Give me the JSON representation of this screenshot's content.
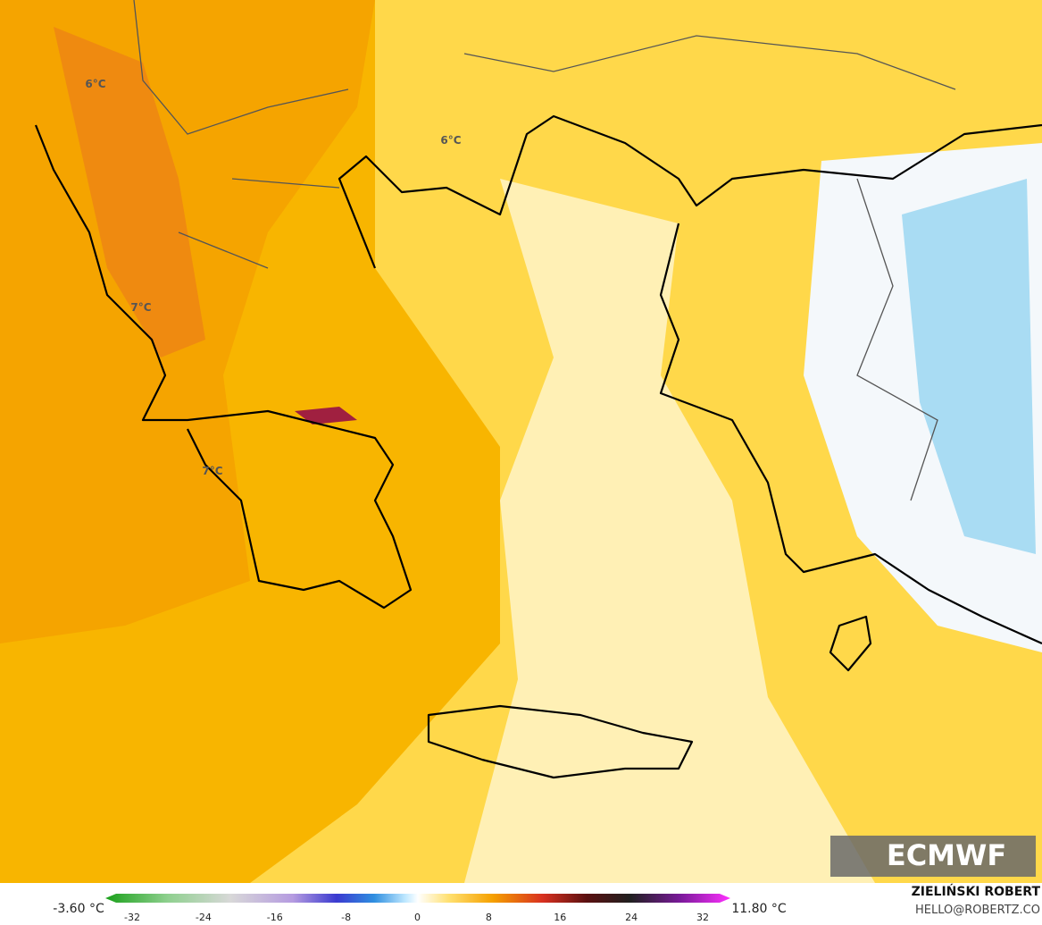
{
  "map": {
    "labels": [
      "6°C",
      "6°C",
      "7°C",
      "7°C"
    ],
    "logo": "ECMWF"
  },
  "legend": {
    "min_label": "-3.60 °C",
    "max_label": "11.80 °C",
    "ticks": [
      -32,
      -24,
      -16,
      -8,
      0,
      8,
      16,
      24,
      32
    ]
  },
  "credits": {
    "author": "ZIELIŃSKI ROBERT",
    "contact": "HELLO@ROBERTZ.CO"
  }
}
